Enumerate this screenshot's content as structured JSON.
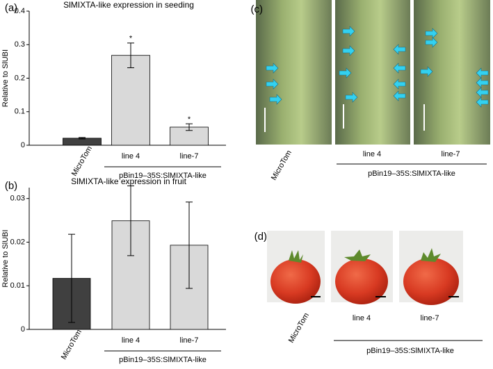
{
  "chart_data": [
    {
      "type": "bar",
      "panel": "(a)",
      "title": "SlMIXTA-like expression in seeding",
      "ylabel": "Relative to SlUBI",
      "categories": [
        "MicroTom",
        "line 4",
        "line-7"
      ],
      "values": [
        0.021,
        0.268,
        0.054
      ],
      "errors": [
        0.002,
        0.037,
        0.01
      ],
      "colors": [
        "#404040",
        "#d9d9d9",
        "#d9d9d9"
      ],
      "group_label": "pBin19–35S:SlMIXTA-like",
      "annotations": [
        {
          "index": 1,
          "text": "*"
        },
        {
          "index": 2,
          "text": "*"
        }
      ],
      "ylim": [
        0,
        0.4
      ],
      "yticks": [
        0,
        0.1,
        0.2,
        0.3,
        0.4
      ]
    },
    {
      "type": "bar",
      "panel": "(b)",
      "title": "SlMIXTA-like expression in fruit",
      "ylabel": "Relative to SlUBI",
      "categories": [
        "MicroTom",
        "line 4",
        "line-7"
      ],
      "values": [
        0.0117,
        0.0249,
        0.0193
      ],
      "errors": [
        0.0101,
        0.008,
        0.0099
      ],
      "colors": [
        "#404040",
        "#d9d9d9",
        "#d9d9d9"
      ],
      "group_label": "pBin19–35S:SlMIXTA-like",
      "ylim": [
        0,
        0.0325
      ],
      "yticks": [
        0,
        0.01,
        0.02,
        0.03
      ]
    }
  ],
  "panels": {
    "c": {
      "label": "(c)",
      "captions": [
        "MicroTom",
        "line 4",
        "line-7"
      ],
      "group_label": "pBin19–35S:SlMIXTA-like"
    },
    "d": {
      "label": "(d)",
      "captions": [
        "MicroTom",
        "line 4",
        "line-7"
      ],
      "group_label": "pBin19–35S:SlMIXTA-like"
    }
  }
}
